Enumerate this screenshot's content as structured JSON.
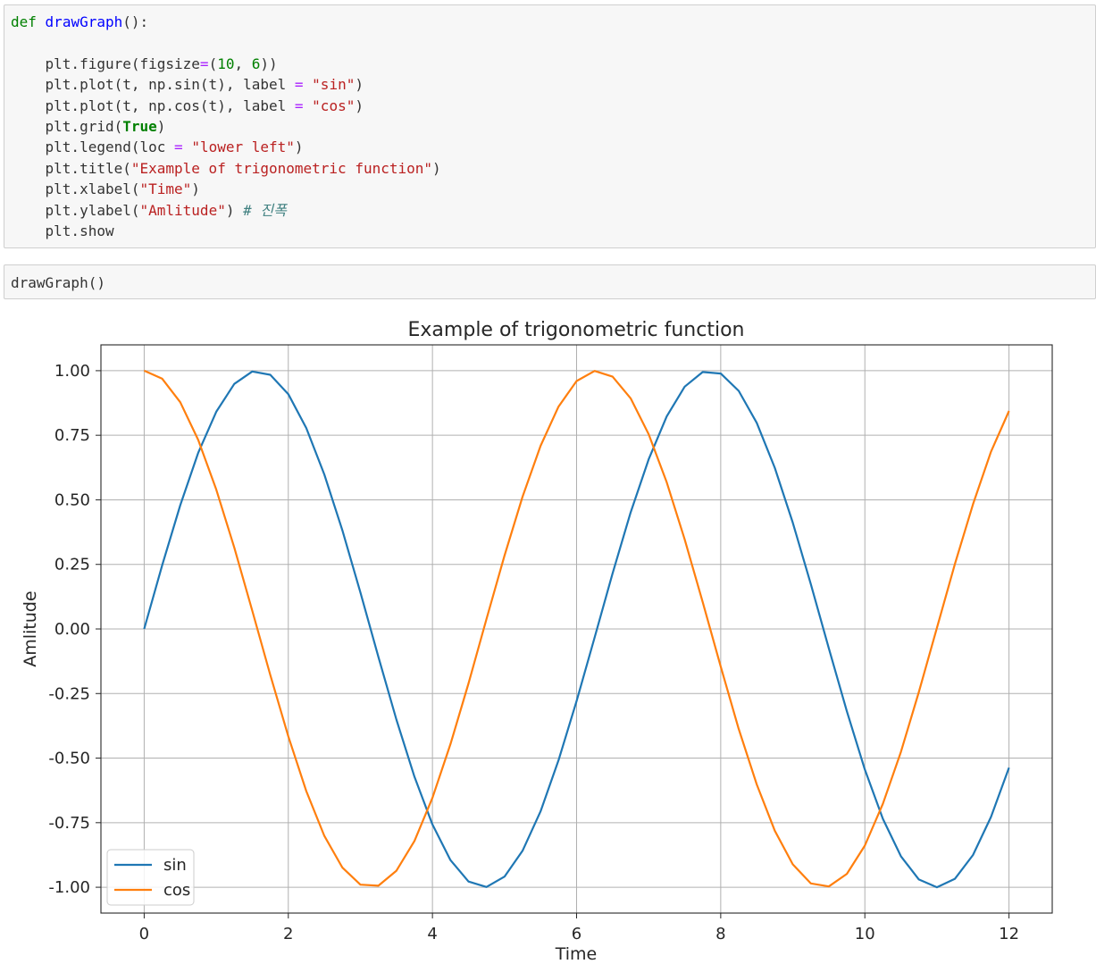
{
  "cells": [
    {
      "lines": [
        [
          {
            "t": "def",
            "c": "kw"
          },
          {
            "t": " "
          },
          {
            "t": "drawGraph",
            "c": "fn"
          },
          {
            "t": "():"
          }
        ],
        [],
        [
          {
            "t": "    plt.figure(figsize"
          },
          {
            "t": "=",
            "c": "op"
          },
          {
            "t": "("
          },
          {
            "t": "10",
            "c": "num"
          },
          {
            "t": ", "
          },
          {
            "t": "6",
            "c": "num"
          },
          {
            "t": "))"
          }
        ],
        [
          {
            "t": "    plt.plot(t, np.sin(t), label "
          },
          {
            "t": "=",
            "c": "op"
          },
          {
            "t": " "
          },
          {
            "t": "\"sin\"",
            "c": "str"
          },
          {
            "t": ")"
          }
        ],
        [
          {
            "t": "    plt.plot(t, np.cos(t), label "
          },
          {
            "t": "=",
            "c": "op"
          },
          {
            "t": " "
          },
          {
            "t": "\"cos\"",
            "c": "str"
          },
          {
            "t": ")"
          }
        ],
        [
          {
            "t": "    plt.grid("
          },
          {
            "t": "True",
            "c": "bool"
          },
          {
            "t": ")"
          }
        ],
        [
          {
            "t": "    plt.legend(loc "
          },
          {
            "t": "=",
            "c": "op"
          },
          {
            "t": " "
          },
          {
            "t": "\"lower left\"",
            "c": "str"
          },
          {
            "t": ")"
          }
        ],
        [
          {
            "t": "    plt.title("
          },
          {
            "t": "\"Example of trigonometric function\"",
            "c": "str"
          },
          {
            "t": ")"
          }
        ],
        [
          {
            "t": "    plt.xlabel("
          },
          {
            "t": "\"Time\"",
            "c": "str"
          },
          {
            "t": ")"
          }
        ],
        [
          {
            "t": "    plt.ylabel("
          },
          {
            "t": "\"Amlitude\"",
            "c": "str"
          },
          {
            "t": ") "
          },
          {
            "t": "# 진폭",
            "c": "comment"
          }
        ],
        [
          {
            "t": "    plt.show"
          }
        ]
      ]
    },
    {
      "lines": [
        [
          {
            "t": "drawGraph()"
          }
        ]
      ]
    }
  ],
  "chart_data": {
    "type": "line",
    "title": "Example of trigonometric function",
    "xlabel": "Time",
    "ylabel": "Amlitude",
    "xlim": [
      -0.6,
      12.6
    ],
    "ylim": [
      -1.1,
      1.1
    ],
    "xticks": [
      0,
      2,
      4,
      6,
      8,
      10,
      12
    ],
    "xtick_labels": [
      "0",
      "2",
      "4",
      "6",
      "8",
      "10",
      "12"
    ],
    "yticks": [
      1.0,
      0.75,
      0.5,
      0.25,
      0.0,
      -0.25,
      -0.5,
      -0.75,
      -1.0
    ],
    "ytick_labels": [
      "1.00",
      "0.75",
      "0.50",
      "0.25",
      "0.00",
      "-0.25",
      "-0.50",
      "-0.75",
      "-1.00"
    ],
    "grid": true,
    "legend_position": "lower left",
    "x": [
      0,
      0.25,
      0.5,
      0.75,
      1,
      1.25,
      1.5,
      1.75,
      2,
      2.25,
      2.5,
      2.75,
      3,
      3.25,
      3.5,
      3.75,
      4,
      4.25,
      4.5,
      4.75,
      5,
      5.25,
      5.5,
      5.75,
      6,
      6.25,
      6.5,
      6.75,
      7,
      7.25,
      7.5,
      7.75,
      8,
      8.25,
      8.5,
      8.75,
      9,
      9.25,
      9.5,
      9.75,
      10,
      10.25,
      10.5,
      10.75,
      11,
      11.25,
      11.5,
      11.75,
      12
    ],
    "series": [
      {
        "name": "sin",
        "color": "#1f77b4",
        "values": [
          0.0,
          0.247,
          0.479,
          0.682,
          0.841,
          0.949,
          0.997,
          0.984,
          0.909,
          0.778,
          0.598,
          0.382,
          0.141,
          -0.108,
          -0.351,
          -0.572,
          -0.757,
          -0.895,
          -0.978,
          -0.999,
          -0.959,
          -0.859,
          -0.706,
          -0.508,
          -0.279,
          -0.033,
          0.215,
          0.451,
          0.657,
          0.823,
          0.938,
          0.995,
          0.989,
          0.922,
          0.798,
          0.624,
          0.412,
          0.174,
          -0.075,
          -0.319,
          -0.544,
          -0.735,
          -0.88,
          -0.97,
          -1.0,
          -0.967,
          -0.875,
          -0.728,
          -0.537
        ]
      },
      {
        "name": "cos",
        "color": "#ff7f0e",
        "values": [
          1.0,
          0.969,
          0.878,
          0.732,
          0.54,
          0.315,
          0.071,
          -0.178,
          -0.416,
          -0.628,
          -0.801,
          -0.924,
          -0.99,
          -0.994,
          -0.936,
          -0.821,
          -0.654,
          -0.446,
          -0.211,
          0.038,
          0.284,
          0.512,
          0.709,
          0.861,
          0.96,
          0.999,
          0.977,
          0.893,
          0.754,
          0.568,
          0.347,
          0.104,
          -0.146,
          -0.387,
          -0.602,
          -0.781,
          -0.911,
          -0.985,
          -0.997,
          -0.948,
          -0.839,
          -0.677,
          -0.476,
          -0.244,
          0.004,
          0.252,
          0.483,
          0.686,
          0.844
        ]
      }
    ]
  }
}
